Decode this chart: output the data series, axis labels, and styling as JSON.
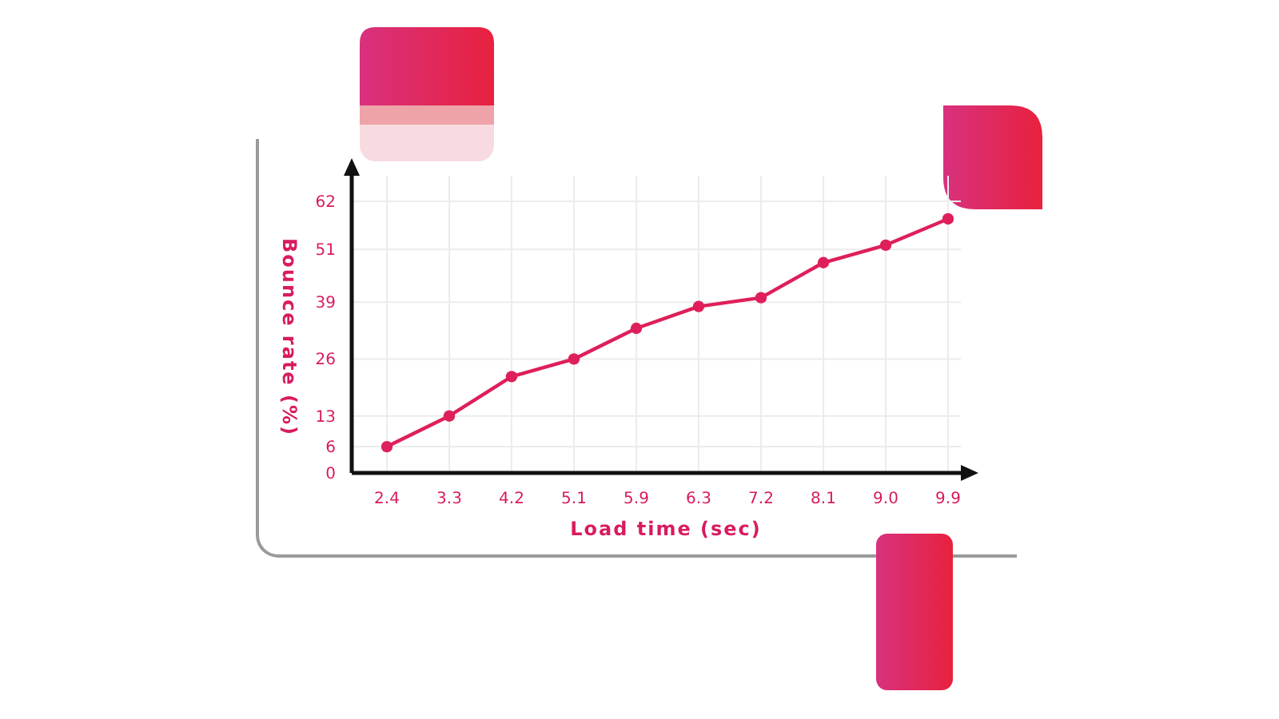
{
  "chart_data": {
    "type": "line",
    "xlabel": "Load time (sec)",
    "ylabel": "Bounce rate (%)",
    "categories": [
      "2.4",
      "3.3",
      "4.2",
      "5.1",
      "5.9",
      "6.3",
      "7.2",
      "8.1",
      "9.0",
      "9.9"
    ],
    "series": [
      {
        "color": "#de1f5a",
        "values": [
          6,
          13,
          22,
          26,
          33,
          38,
          40,
          48,
          52,
          58
        ]
      }
    ],
    "ylim": [
      0,
      62
    ],
    "yticks": [
      0,
      6,
      13,
      26,
      39,
      51,
      62
    ],
    "grid": true,
    "marker": "circle",
    "line_style": "solid"
  }
}
